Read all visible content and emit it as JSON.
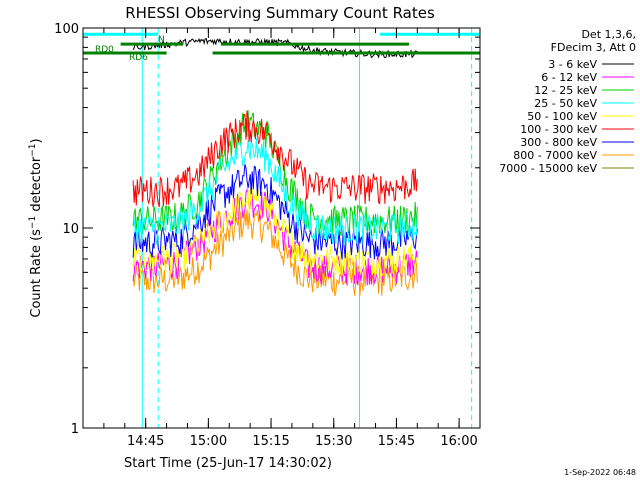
{
  "chart_data": {
    "type": "line",
    "title": "RHESSI Observing Summary Count Rates",
    "xlabel": "Start Time (25-Jun-17 14:30:02)",
    "ylabel_parts": [
      "Count Rate (s",
      "−1",
      " detector",
      "−1",
      ")"
    ],
    "yscale": "log",
    "ylim": [
      1,
      100
    ],
    "y_ticks": [
      1,
      10,
      100
    ],
    "y_tick_labels": [
      "1",
      "10",
      "100"
    ],
    "x_ticks": [
      "14:45",
      "15:00",
      "15:15",
      "15:30",
      "15:45",
      "16:00"
    ],
    "xlim": [
      "14:30",
      "16:05"
    ],
    "grid": false,
    "legend_placement": "right",
    "legend_header": [
      "Det 1,3,6,",
      "FDecim 3, Att 0"
    ],
    "data_window": {
      "start": "14:42",
      "end": "15:50"
    },
    "series": [
      {
        "name": "3 - 6 keV",
        "color": "#000000",
        "values": [
          80,
          82,
          84,
          86,
          86,
          85,
          85,
          84,
          78,
          76,
          75,
          74,
          74,
          74
        ]
      },
      {
        "name": "6 - 12 keV",
        "color": "#ff00ff",
        "values": [
          6.5,
          6.5,
          6.8,
          8.5,
          11,
          14,
          13,
          8.5,
          6.5,
          6.3,
          6.3,
          6.3,
          6.4,
          6.8
        ]
      },
      {
        "name": "12 - 25 keV",
        "color": "#00d000",
        "values": [
          11,
          11,
          11.5,
          14,
          22,
          34,
          30,
          17,
          11.5,
          11,
          11,
          11,
          11,
          11.5
        ]
      },
      {
        "name": "25 - 50 keV",
        "color": "#00ffff",
        "values": [
          10,
          10,
          10.5,
          13,
          19,
          26,
          23,
          14,
          10.5,
          10,
          10,
          10,
          10,
          10.5
        ]
      },
      {
        "name": "50 - 100 keV",
        "color": "#ffff00",
        "values": [
          7,
          7,
          7.2,
          8.5,
          11,
          14,
          13,
          9,
          7.2,
          7,
          7,
          7,
          7,
          7.2
        ]
      },
      {
        "name": "100 - 300 keV",
        "color": "#ff0000",
        "values": [
          15.5,
          15.5,
          16,
          19,
          27,
          33,
          30,
          22,
          16.5,
          16,
          16,
          16,
          16,
          17
        ]
      },
      {
        "name": "300 - 800 keV",
        "color": "#0000ff",
        "values": [
          8.5,
          8.5,
          8.8,
          11,
          14.5,
          18,
          16.5,
          11.5,
          8.8,
          8.5,
          8.5,
          8.5,
          8.6,
          9.2
        ]
      },
      {
        "name": "800 - 7000 keV",
        "color": "#ff9900",
        "values": [
          5.5,
          5.5,
          5.6,
          6.5,
          8.5,
          11,
          10,
          7,
          5.6,
          5.5,
          5.5,
          5.5,
          5.6,
          6
        ]
      },
      {
        "name": "7000 - 15000 keV",
        "color": "#808000",
        "values": []
      }
    ],
    "series_times": [
      "14:43",
      "14:48",
      "14:53",
      "14:58",
      "15:03",
      "15:09",
      "15:14",
      "15:19",
      "15:24",
      "15:29",
      "15:34",
      "15:40",
      "15:45",
      "15:50"
    ],
    "annotations": [
      {
        "text": "RD0",
        "color": "#008000"
      },
      {
        "text": "RD6",
        "color": "#008000"
      },
      {
        "text": "N",
        "color": "#008000"
      }
    ],
    "segments": [
      {
        "color": "#00ffff",
        "start": "14:30",
        "end": "14:48",
        "y": 93
      },
      {
        "color": "#00ffff",
        "start": "15:41",
        "end": "16:05",
        "y": 93
      },
      {
        "color": "#008000",
        "start": "14:39",
        "end": "14:54",
        "y": 83
      },
      {
        "color": "#008000",
        "start": "15:03",
        "end": "15:48",
        "y": 83
      },
      {
        "color": "#008000",
        "start": "14:30",
        "end": "14:50",
        "y": 75
      },
      {
        "color": "#008000",
        "start": "15:01",
        "end": "16:05",
        "y": 75
      }
    ],
    "vertical_lines": [
      {
        "time": "14:48",
        "color": "#00ffff",
        "style": "solid"
      },
      {
        "time": "14:48",
        "color": "#00ffff",
        "style": "dashed"
      },
      {
        "time": "15:40",
        "color": "#00ffff",
        "style": "solid"
      },
      {
        "time": "16:03",
        "color": "#00ffff",
        "style": "dashed"
      }
    ],
    "timestamp": "1-Sep-2022 06:48"
  }
}
